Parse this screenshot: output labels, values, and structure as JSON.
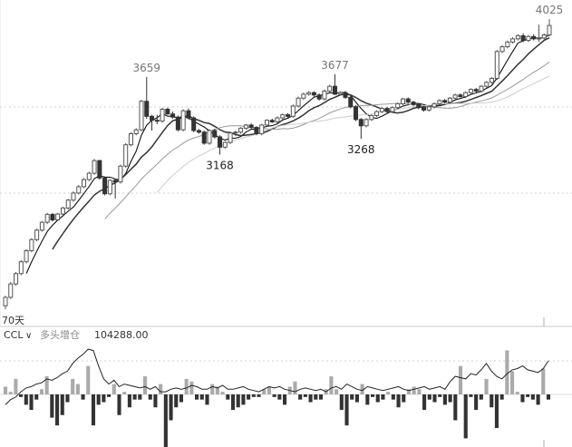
{
  "chart_data": [
    {
      "type": "candlestick",
      "title": "",
      "colors": {
        "up_fill": "#ffffff",
        "up_stroke": "#555555",
        "down": "#333333",
        "ma": "#222222"
      },
      "ylim": [
        2150,
        4100
      ],
      "annotations": [
        {
          "text": "3659",
          "x": 27,
          "y": 3659,
          "position": "above"
        },
        {
          "text": "3168",
          "x": 41,
          "y": 3168,
          "position": "below"
        },
        {
          "text": "3677",
          "x": 63,
          "y": 3677,
          "position": "above"
        },
        {
          "text": "3268",
          "x": 68,
          "y": 3268,
          "position": "below"
        },
        {
          "text": "4025",
          "x": 104,
          "y": 4025,
          "position": "above"
        }
      ],
      "period_label": "70天",
      "candles": [
        [
          2212,
          2265,
          2190,
          2275
        ],
        [
          2265,
          2350,
          2255,
          2362
        ],
        [
          2350,
          2415,
          2340,
          2425
        ],
        [
          2415,
          2490,
          2405,
          2500
        ],
        [
          2490,
          2560,
          2480,
          2570
        ],
        [
          2560,
          2630,
          2550,
          2640
        ],
        [
          2630,
          2690,
          2620,
          2700
        ],
        [
          2690,
          2740,
          2680,
          2748
        ],
        [
          2740,
          2790,
          2728,
          2800
        ],
        [
          2790,
          2755,
          2745,
          2798
        ],
        [
          2755,
          2792,
          2748,
          2800
        ],
        [
          2792,
          2830,
          2785,
          2838
        ],
        [
          2830,
          2880,
          2820,
          2888
        ],
        [
          2880,
          2925,
          2870,
          2935
        ],
        [
          2925,
          2965,
          2915,
          2975
        ],
        [
          2965,
          3010,
          2955,
          3020
        ],
        [
          3010,
          3050,
          3000,
          3060
        ],
        [
          3050,
          3130,
          3040,
          3140
        ],
        [
          3130,
          3020,
          3010,
          3135
        ],
        [
          3020,
          2920,
          2910,
          3030
        ],
        [
          2920,
          3005,
          2910,
          3012
        ],
        [
          3005,
          2995,
          2890,
          3015
        ],
        [
          2995,
          3095,
          2985,
          3105
        ],
        [
          3095,
          3230,
          3085,
          3240
        ],
        [
          3230,
          3300,
          3220,
          3310
        ],
        [
          3300,
          3325,
          3290,
          3335
        ],
        [
          3325,
          3505,
          3315,
          3515
        ],
        [
          3505,
          3410,
          3395,
          3659
        ],
        [
          3410,
          3385,
          3320,
          3420
        ],
        [
          3385,
          3380,
          3360,
          3420
        ],
        [
          3380,
          3455,
          3370,
          3465
        ],
        [
          3455,
          3425,
          3420,
          3465
        ],
        [
          3425,
          3405,
          3395,
          3440
        ],
        [
          3405,
          3325,
          3315,
          3415
        ],
        [
          3325,
          3445,
          3315,
          3455
        ],
        [
          3445,
          3400,
          3390,
          3460
        ],
        [
          3400,
          3320,
          3310,
          3410
        ],
        [
          3320,
          3310,
          3300,
          3330
        ],
        [
          3310,
          3240,
          3230,
          3320
        ],
        [
          3240,
          3320,
          3230,
          3328
        ],
        [
          3320,
          3280,
          3270,
          3330
        ],
        [
          3280,
          3215,
          3168,
          3290
        ],
        [
          3215,
          3245,
          3205,
          3252
        ],
        [
          3245,
          3305,
          3235,
          3312
        ],
        [
          3305,
          3310,
          3285,
          3320
        ],
        [
          3310,
          3335,
          3300,
          3342
        ],
        [
          3335,
          3355,
          3325,
          3362
        ],
        [
          3355,
          3340,
          3332,
          3365
        ],
        [
          3340,
          3300,
          3290,
          3348
        ],
        [
          3300,
          3355,
          3290,
          3362
        ],
        [
          3355,
          3385,
          3345,
          3392
        ],
        [
          3385,
          3375,
          3368,
          3395
        ],
        [
          3375,
          3400,
          3365,
          3410
        ],
        [
          3400,
          3420,
          3392,
          3428
        ],
        [
          3420,
          3410,
          3400,
          3430
        ],
        [
          3410,
          3475,
          3400,
          3485
        ],
        [
          3475,
          3525,
          3465,
          3535
        ],
        [
          3525,
          3550,
          3515,
          3560
        ],
        [
          3550,
          3560,
          3540,
          3570
        ],
        [
          3560,
          3545,
          3535,
          3568
        ],
        [
          3545,
          3520,
          3510,
          3555
        ],
        [
          3520,
          3570,
          3510,
          3580
        ],
        [
          3570,
          3600,
          3560,
          3610
        ],
        [
          3600,
          3550,
          3545,
          3677
        ],
        [
          3550,
          3560,
          3540,
          3570
        ],
        [
          3560,
          3530,
          3520,
          3570
        ],
        [
          3530,
          3470,
          3460,
          3540
        ],
        [
          3470,
          3390,
          3380,
          3480
        ],
        [
          3390,
          3350,
          3268,
          3400
        ],
        [
          3350,
          3390,
          3340,
          3398
        ],
        [
          3390,
          3415,
          3380,
          3422
        ],
        [
          3415,
          3440,
          3405,
          3448
        ],
        [
          3440,
          3460,
          3430,
          3470
        ],
        [
          3460,
          3440,
          3432,
          3470
        ],
        [
          3440,
          3465,
          3432,
          3475
        ],
        [
          3465,
          3490,
          3455,
          3498
        ],
        [
          3490,
          3520,
          3480,
          3528
        ],
        [
          3520,
          3500,
          3490,
          3530
        ],
        [
          3500,
          3485,
          3475,
          3508
        ],
        [
          3485,
          3465,
          3455,
          3495
        ],
        [
          3465,
          3450,
          3440,
          3475
        ],
        [
          3450,
          3470,
          3440,
          3478
        ],
        [
          3470,
          3490,
          3460,
          3498
        ],
        [
          3490,
          3510,
          3480,
          3518
        ],
        [
          3510,
          3500,
          3492,
          3520
        ],
        [
          3500,
          3525,
          3490,
          3533
        ],
        [
          3525,
          3545,
          3515,
          3553
        ],
        [
          3545,
          3535,
          3528,
          3555
        ],
        [
          3535,
          3560,
          3525,
          3568
        ],
        [
          3560,
          3580,
          3550,
          3588
        ],
        [
          3580,
          3570,
          3560,
          3590
        ],
        [
          3570,
          3600,
          3560,
          3608
        ],
        [
          3600,
          3625,
          3590,
          3633
        ],
        [
          3625,
          3650,
          3615,
          3658
        ],
        [
          3650,
          3820,
          3640,
          3830
        ],
        [
          3820,
          3850,
          3810,
          3860
        ],
        [
          3850,
          3880,
          3840,
          3890
        ],
        [
          3880,
          3900,
          3870,
          3910
        ],
        [
          3900,
          3920,
          3890,
          3930
        ],
        [
          3920,
          3890,
          3880,
          3935
        ],
        [
          3890,
          3915,
          3880,
          3925
        ],
        [
          3915,
          3900,
          3890,
          3930
        ],
        [
          3900,
          3905,
          3880,
          3990
        ],
        [
          3905,
          3925,
          3895,
          3935
        ],
        [
          3925,
          3985,
          3915,
          4025
        ]
      ],
      "moving_averages": [
        5,
        10,
        20,
        30
      ]
    },
    {
      "type": "bar+line",
      "indicator": "CCL",
      "mode": "多头增仓",
      "value": "104288.00",
      "colors": {
        "up": "#aaaaaa",
        "down": "#333333",
        "line": "#222222",
        "ref": "#dddddd"
      },
      "ylim": [
        -200,
        200
      ],
      "bars": [
        30,
        10,
        60,
        -10,
        -40,
        -60,
        -20,
        20,
        70,
        -90,
        -120,
        -80,
        -30,
        60,
        40,
        -20,
        110,
        -120,
        -40,
        -30,
        -10,
        40,
        -80,
        10,
        -50,
        -20,
        -20,
        70,
        -20,
        -50,
        40,
        -210,
        -100,
        -50,
        -30,
        60,
        50,
        -20,
        -20,
        -40,
        40,
        30,
        10,
        -20,
        -60,
        -50,
        -40,
        -20,
        -10,
        -10,
        20,
        30,
        -10,
        -20,
        -40,
        30,
        50,
        -20,
        -10,
        -30,
        -20,
        -20,
        20,
        70,
        20,
        -60,
        -120,
        -20,
        -30,
        40,
        -40,
        -10,
        -30,
        -20,
        10,
        -20,
        -50,
        -30,
        20,
        30,
        20,
        -60,
        -20,
        -30,
        -10,
        -40,
        -30,
        -100,
        110,
        -170,
        -10,
        -60,
        -20,
        60,
        -50,
        -130,
        -20,
        170,
        90,
        10,
        -30,
        -10,
        -20,
        -40,
        100,
        -20
      ],
      "line": [
        -40,
        -20,
        -10,
        10,
        25,
        30,
        40,
        45,
        60,
        55,
        65,
        80,
        90,
        120,
        140,
        155,
        175,
        170,
        110,
        60,
        40,
        55,
        30,
        40,
        35,
        30,
        25,
        30,
        20,
        30,
        10,
        10,
        20,
        25,
        20,
        25,
        35,
        30,
        20,
        20,
        30,
        25,
        35,
        20,
        20,
        25,
        30,
        20,
        15,
        10,
        20,
        30,
        25,
        30,
        20,
        15,
        10,
        20,
        25,
        20,
        15,
        20,
        10,
        25,
        30,
        20,
        40,
        30,
        20,
        15,
        30,
        25,
        20,
        15,
        20,
        25,
        30,
        20,
        15,
        20,
        25,
        30,
        20,
        25,
        30,
        20,
        50,
        70,
        65,
        60,
        80,
        75,
        95,
        120,
        90,
        70,
        60,
        80,
        95,
        100,
        110,
        95,
        90,
        85,
        100,
        130
      ]
    }
  ]
}
